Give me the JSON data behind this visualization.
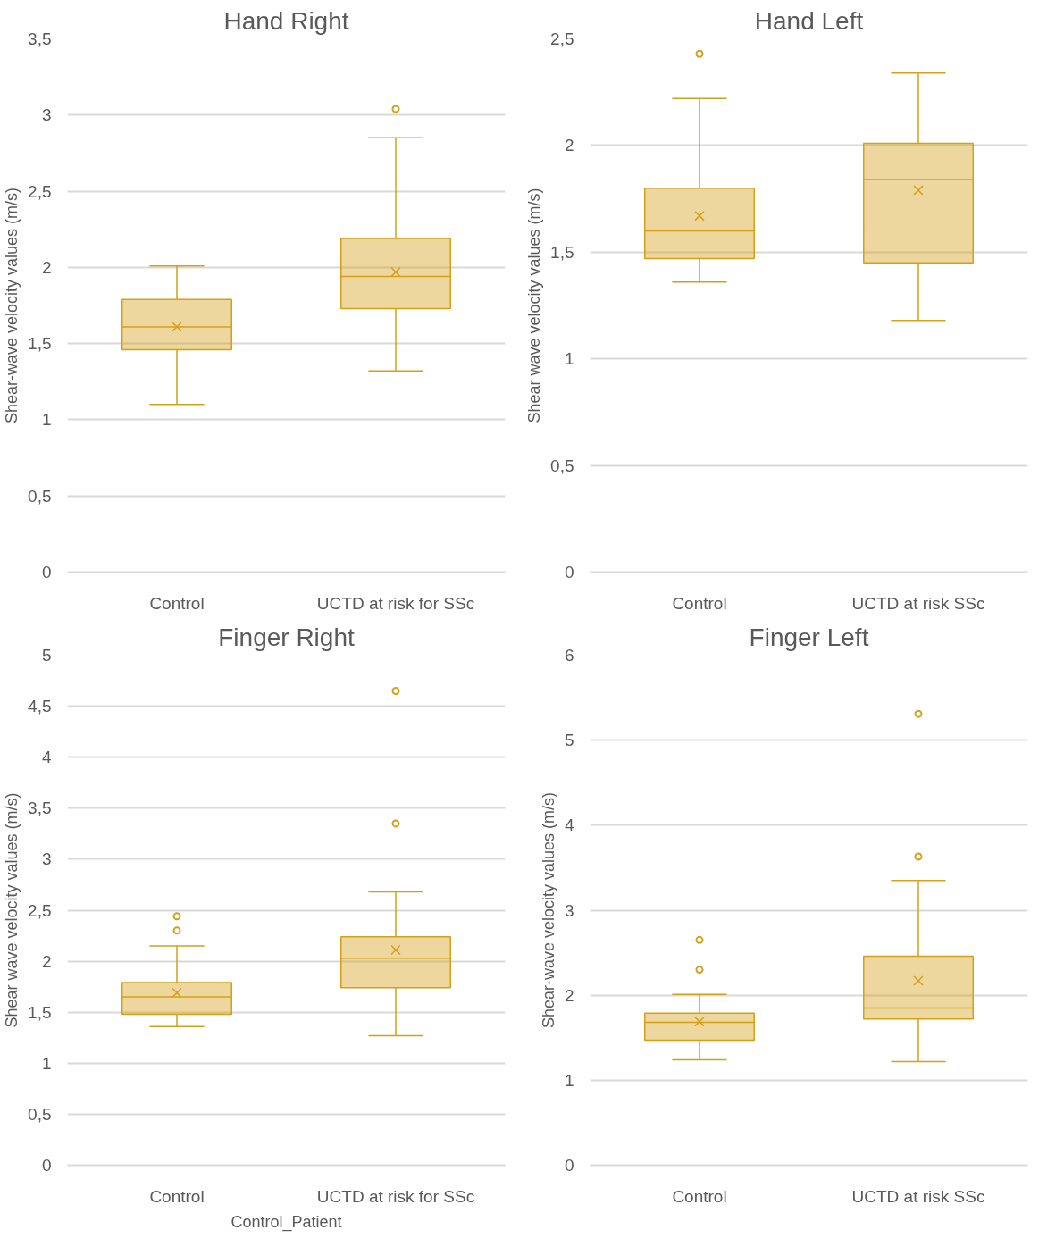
{
  "chart_data": [
    {
      "type": "box",
      "title": "Hand Right",
      "ylabel": "Shear-wave velocity values (m/s)",
      "categories": [
        "Control",
        "UCTD at risk for SSc"
      ],
      "color": "#d4a017",
      "marker": "circle",
      "grid": "y",
      "ylim": [
        0,
        3.5
      ],
      "yticks": [
        0,
        {
          "value": 0.5,
          "label": "0,5"
        },
        1,
        {
          "value": 1.5,
          "label": "1,5"
        },
        2,
        {
          "value": 2.5,
          "label": "2,5"
        },
        3,
        {
          "value": 3.5,
          "label": "3,5"
        }
      ],
      "boxes": [
        {
          "low": 1.1,
          "q1": 1.46,
          "median": 1.61,
          "q3": 1.79,
          "high": 2.01,
          "mean": 1.61
        },
        {
          "low": 1.32,
          "q1": 1.73,
          "median": 1.94,
          "q3": 2.19,
          "high": 2.85,
          "mean": 1.97,
          "outliers": [
            3.04
          ]
        }
      ]
    },
    {
      "type": "box",
      "title": "Hand Left",
      "ylabel": "Shear wave velocity values (m/s)",
      "categories": [
        "Control",
        "UCTD at risk SSc"
      ],
      "color": "#d4a017",
      "marker": "circle",
      "grid": "y",
      "ylim": [
        0,
        2.5
      ],
      "yticks": [
        0,
        {
          "value": 0.5,
          "label": "0,5"
        },
        1,
        {
          "value": 1.5,
          "label": "1,5"
        },
        2,
        {
          "value": 2.5,
          "label": "2,5"
        }
      ],
      "boxes": [
        {
          "low": 1.36,
          "q1": 1.47,
          "median": 1.6,
          "q3": 1.8,
          "high": 2.22,
          "mean": 1.67,
          "outliers": [
            2.43
          ]
        },
        {
          "low": 1.18,
          "q1": 1.45,
          "median": 1.84,
          "q3": 2.01,
          "high": 2.34,
          "mean": 1.79
        }
      ]
    },
    {
      "type": "box",
      "title": "Finger Right",
      "ylabel": "Shear wave velocity values (m/s)",
      "xlabel": "Control_Patient",
      "categories": [
        "Control",
        "UCTD at risk for SSc"
      ],
      "color": "#d4a017",
      "marker": "circle",
      "grid": "y",
      "ylim": [
        0,
        5
      ],
      "yticks": [
        0,
        {
          "value": 0.5,
          "label": "0,5"
        },
        1,
        {
          "value": 1.5,
          "label": "1,5"
        },
        2,
        {
          "value": 2.5,
          "label": "2,5"
        },
        3,
        {
          "value": 3.5,
          "label": "3,5"
        },
        4,
        {
          "value": 4.5,
          "label": "4,5"
        },
        5
      ],
      "boxes": [
        {
          "low": 1.36,
          "q1": 1.48,
          "median": 1.65,
          "q3": 1.79,
          "high": 2.15,
          "mean": 1.69,
          "outliers": [
            2.44,
            2.3
          ]
        },
        {
          "low": 1.27,
          "q1": 1.74,
          "median": 2.03,
          "q3": 2.24,
          "high": 2.68,
          "mean": 2.11,
          "outliers": [
            4.65,
            3.35
          ]
        }
      ]
    },
    {
      "type": "box",
      "title": "Finger Left",
      "ylabel": "Shear-wave velocity values (m/s)",
      "categories": [
        "Control",
        "UCTD at risk SSc"
      ],
      "color": "#d4a017",
      "marker": "circle",
      "grid": "y",
      "ylim": [
        0,
        6
      ],
      "yticks": [
        0,
        1,
        2,
        3,
        4,
        5,
        6
      ],
      "boxes": [
        {
          "low": 1.24,
          "q1": 1.47,
          "median": 1.68,
          "q3": 1.79,
          "high": 2.01,
          "mean": 1.69,
          "outliers": [
            2.65,
            2.3
          ]
        },
        {
          "low": 1.22,
          "q1": 1.72,
          "median": 1.85,
          "q3": 2.46,
          "high": 3.35,
          "mean": 2.17,
          "outliers": [
            5.31,
            3.63
          ]
        }
      ]
    }
  ]
}
